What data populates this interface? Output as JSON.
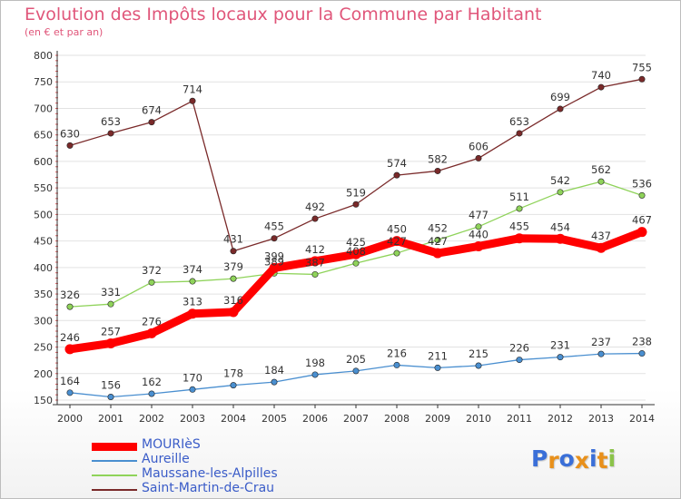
{
  "header": {
    "title": "Evolution des Impôts locaux pour la Commune par Habitant",
    "subtitle": "(en € et par an)"
  },
  "logo": {
    "text": "Proxiti",
    "letters": [
      "P",
      "r",
      "o",
      "x",
      "i",
      "t",
      "i"
    ],
    "colors": [
      "#3a6fd8",
      "#e8901b",
      "#3a6fd8",
      "#e8901b",
      "#3a6fd8",
      "#e8901b",
      "#8bc34a"
    ]
  },
  "chart_data": {
    "type": "line",
    "title": "Evolution des Impôts locaux pour la Commune par Habitant",
    "subtitle": "(en € et par an)",
    "xlabel": "",
    "ylabel": "",
    "x": [
      2000,
      2001,
      2002,
      2003,
      2004,
      2005,
      2006,
      2007,
      2008,
      2009,
      2010,
      2011,
      2012,
      2013,
      2014
    ],
    "ylim": [
      150,
      800
    ],
    "yticks": [
      150,
      200,
      250,
      300,
      350,
      400,
      450,
      500,
      550,
      600,
      650,
      700,
      750,
      800
    ],
    "grid": "horizontal",
    "legend_position": "bottom-left",
    "series": [
      {
        "name": "MOURIèS",
        "color": "#ff0000",
        "emphasis": true,
        "values": [
          246,
          257,
          276,
          313,
          316,
          399,
          412,
          425,
          450,
          427,
          440,
          455,
          454,
          437,
          467
        ],
        "labels": [
          "246",
          "257",
          "276",
          "313",
          "316",
          "399",
          "412",
          "425",
          "450",
          "427",
          "440",
          "455",
          "454",
          "437",
          "467"
        ]
      },
      {
        "name": "Aureille",
        "color": "#4a8fd0",
        "emphasis": false,
        "values": [
          164,
          156,
          162,
          170,
          178,
          184,
          198,
          205,
          216,
          211,
          215,
          226,
          231,
          237,
          238
        ],
        "labels": [
          "164",
          "156",
          "162",
          "170",
          "178",
          "184",
          "198",
          "205",
          "216",
          "211",
          "215",
          "226",
          "231",
          "237",
          "238"
        ]
      },
      {
        "name": "Maussane-les-Alpilles",
        "color": "#8fd35a",
        "emphasis": false,
        "values": [
          326,
          331,
          372,
          374,
          379,
          389,
          387,
          408,
          427,
          452,
          477,
          511,
          542,
          562,
          536
        ],
        "labels": [
          "326",
          "331",
          "372",
          "374",
          "379",
          "389",
          "387",
          "408",
          "427",
          "452",
          "477",
          "511",
          "542",
          "562",
          "536"
        ]
      },
      {
        "name": "Saint-Martin-de-Crau",
        "color": "#7a2a2a",
        "emphasis": false,
        "values": [
          630,
          653,
          674,
          714,
          431,
          455,
          492,
          519,
          574,
          582,
          606,
          653,
          699,
          740,
          755
        ],
        "labels": [
          "630",
          "653",
          "674",
          "714",
          "431",
          "455",
          "492",
          "519",
          "574",
          "582",
          "606",
          "653",
          "699",
          "740",
          "755"
        ]
      }
    ]
  }
}
